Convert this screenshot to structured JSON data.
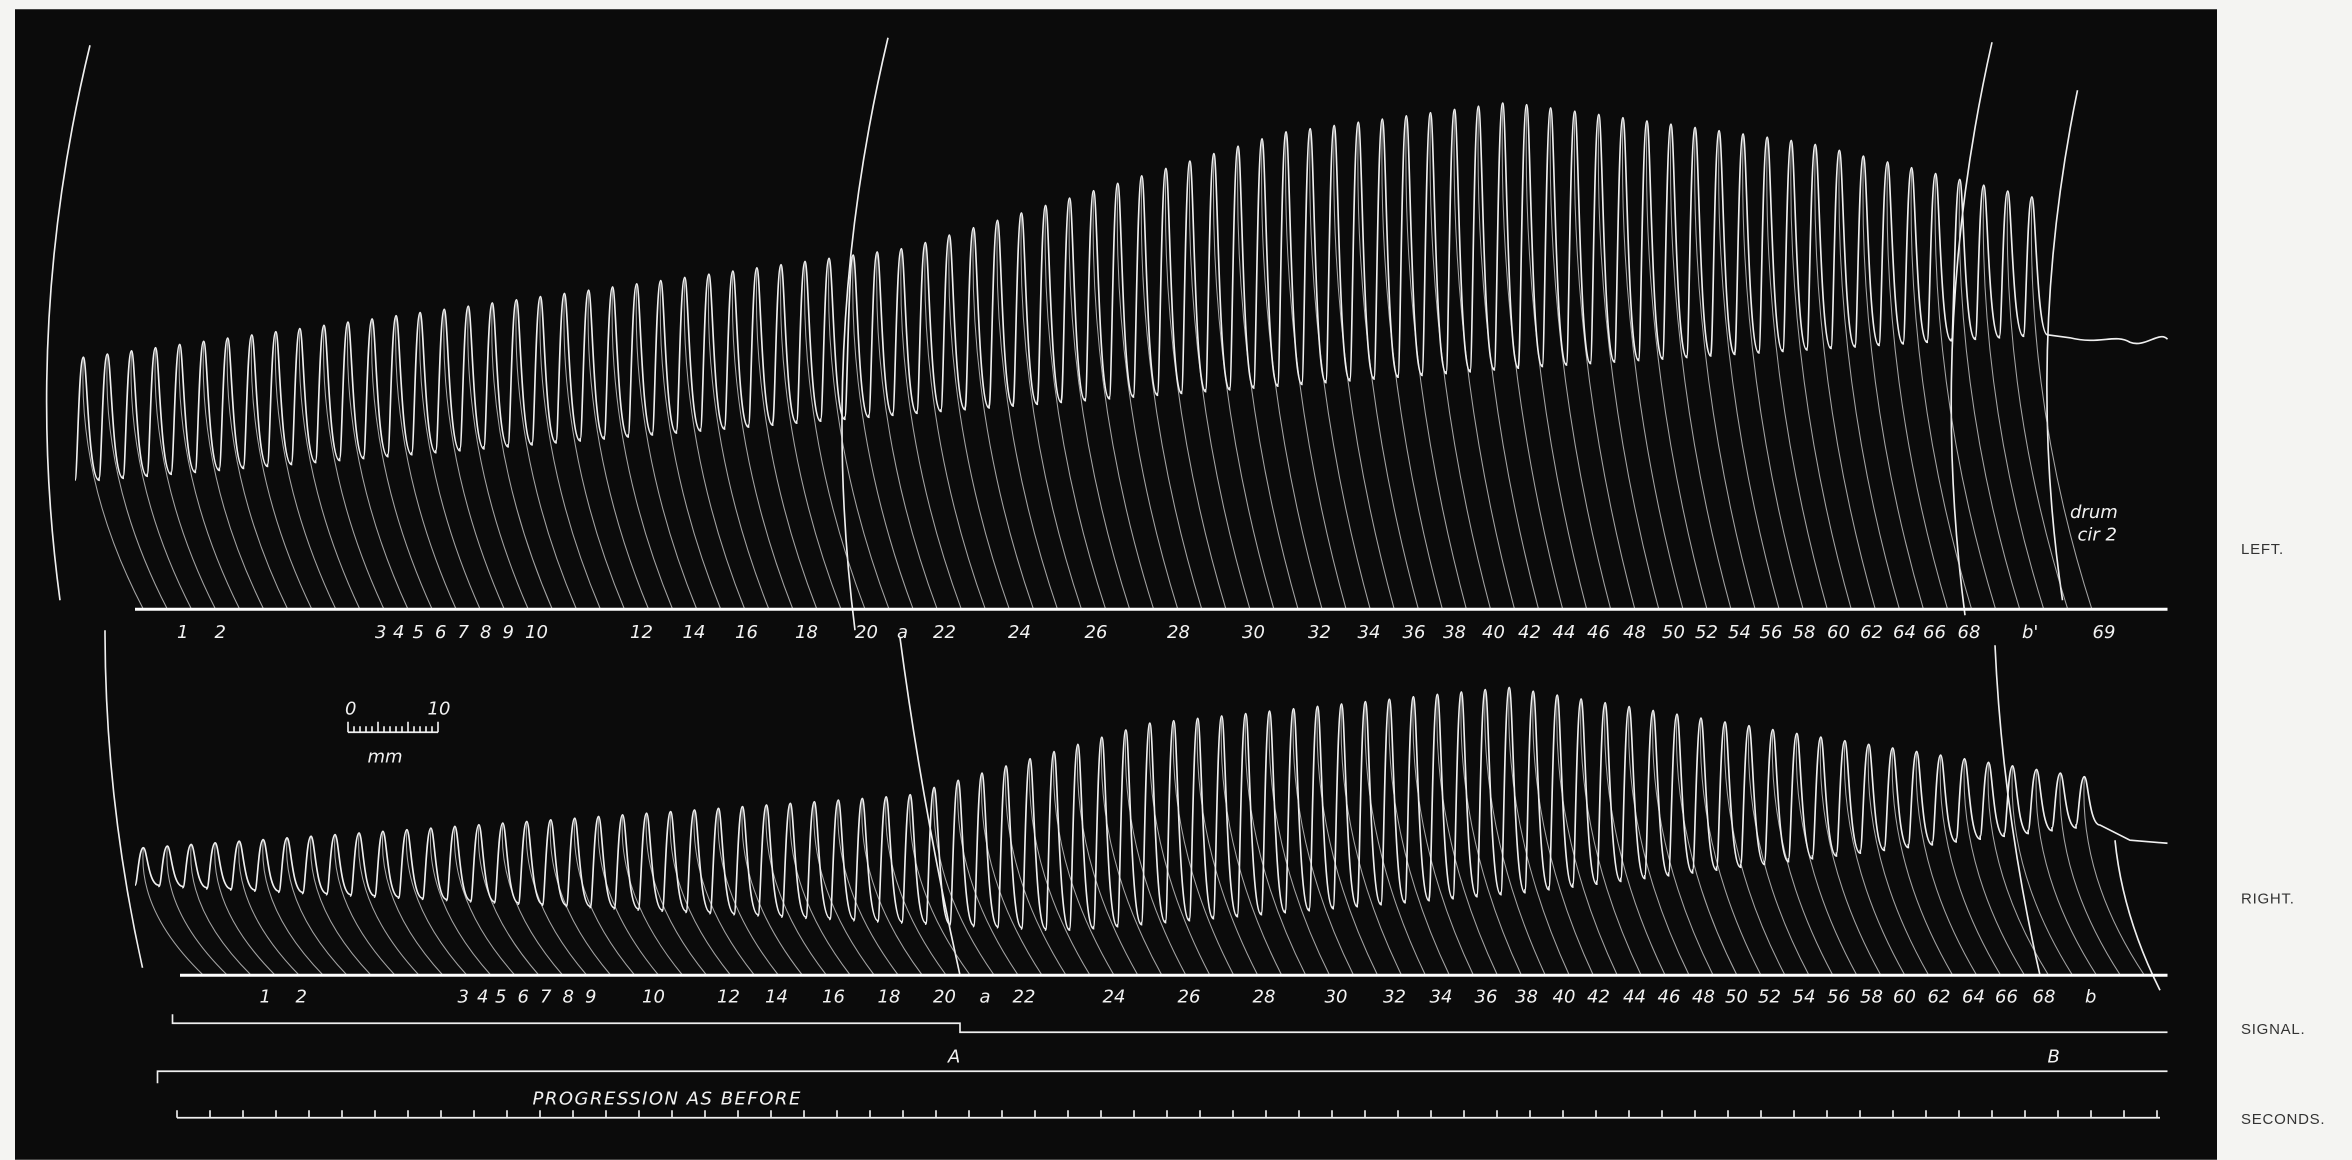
{
  "top_labels": [
    "1",
    "2",
    "3",
    "4",
    "5",
    "6",
    "7",
    "8",
    "9",
    "10",
    "12",
    "14",
    "16",
    "18",
    "20",
    "a",
    "22",
    "24",
    "26",
    "28",
    "30",
    "32",
    "34",
    "36",
    "38",
    "40",
    "42",
    "44",
    "46",
    "48",
    "50",
    "52",
    "54",
    "56",
    "58",
    "60",
    "62",
    "64",
    "66",
    "68",
    "b'",
    "69"
  ],
  "bottom_labels": [
    "1",
    "2",
    "3",
    "4",
    "5",
    "6",
    "7",
    "8",
    "9",
    "10",
    "12",
    "14",
    "16",
    "18",
    "20",
    "a",
    "22",
    "24",
    "26",
    "28",
    "30",
    "32",
    "34",
    "36",
    "38",
    "40",
    "42",
    "44",
    "46",
    "48",
    "50",
    "52",
    "54",
    "56",
    "58",
    "60",
    "62",
    "64",
    "66",
    "68",
    "b"
  ],
  "drum_note": [
    "drum",
    "cir 2"
  ],
  "scale_bar": {
    "min": "0",
    "max": "10",
    "unit": "mm"
  },
  "markers": {
    "start": "A",
    "end": "B"
  },
  "note": "PROGRESSION AS BEFORE",
  "row_labels": [
    "LEFT.",
    "RIGHT.",
    "SIGNAL.",
    "SECONDS."
  ]
}
